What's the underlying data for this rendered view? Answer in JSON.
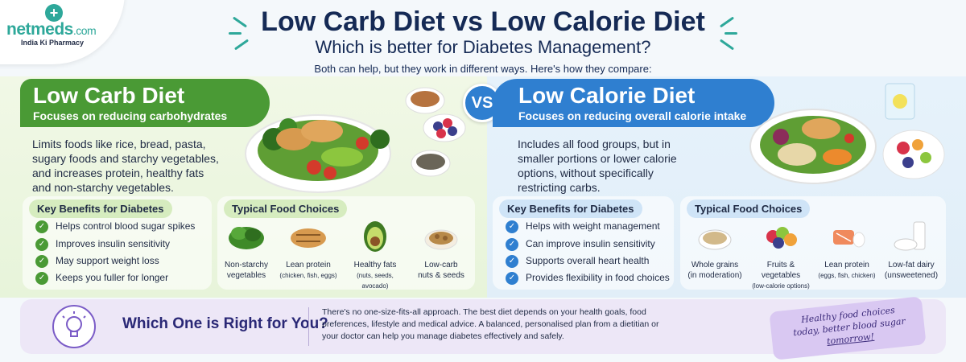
{
  "brand": {
    "name": "netmeds",
    "suffix": ".com",
    "tagline": "India Ki Pharmacy"
  },
  "header": {
    "title": "Low Carb Diet vs Low Calorie Diet",
    "subtitle": "Which is better for Diabetes Management?",
    "intro": "Both can help, but they work in different ways. Here's how they compare:"
  },
  "vs_label": "VS",
  "low_carb": {
    "title": "Low Carb Diet",
    "subtitle": "Focuses on reducing carbohydrates",
    "description": "Limits foods like rice, bread, pasta, sugary foods and starchy vegetables, and increases protein, healthy fats and non-starchy vegetables.",
    "benefits_title": "Key Benefits for Diabetes",
    "benefits": [
      "Helps control blood sugar spikes",
      "Improves insulin sensitivity",
      "May support weight loss",
      "Keeps you fuller for longer"
    ],
    "foods_title": "Typical Food Choices",
    "foods": [
      {
        "name": "Non-starchy",
        "detail": "vegetables",
        "icon": "greens-icon"
      },
      {
        "name": "Lean protein",
        "detail": "(chicken, fish, eggs)",
        "icon": "chicken-icon"
      },
      {
        "name": "Healthy fats",
        "detail": "(nuts, seeds, avocado)",
        "icon": "avocado-icon"
      },
      {
        "name": "Low-carb",
        "detail": "nuts & seeds",
        "icon": "nuts-icon"
      }
    ]
  },
  "low_calorie": {
    "title": "Low Calorie Diet",
    "subtitle": "Focuses on reducing overall calorie intake",
    "description": "Includes all food groups, but in smaller portions or lower calorie options, without specifically restricting carbs.",
    "benefits_title": "Key Benefits for Diabetes",
    "benefits": [
      "Helps with weight management",
      "Can improve insulin sensitivity",
      "Supports overall heart health",
      "Provides flexibility in food choices"
    ],
    "foods_title": "Typical Food Choices",
    "foods": [
      {
        "name": "Whole grains",
        "detail": "(in moderation)",
        "icon": "grains-icon"
      },
      {
        "name": "Fruits & vegetables",
        "detail": "(low-calorie options)",
        "icon": "fruit-veg-icon"
      },
      {
        "name": "Lean protein",
        "detail": "(eggs, fish, chicken)",
        "icon": "salmon-icon"
      },
      {
        "name": "Low-fat dairy",
        "detail": "(unsweetened)",
        "icon": "dairy-icon"
      }
    ]
  },
  "bottom": {
    "question": "Which One is Right for You?",
    "text": "There's no one-size-fits-all approach. The best diet depends on your health goals, food preferences, lifestyle and medical advice. A balanced, personalised plan from a dietitian or your doctor can help you manage diabetes effectively and safely.",
    "note_line1": "Healthy food choices",
    "note_line2": "today, better blood sugar",
    "note_line3": "tomorrow!"
  },
  "colors": {
    "green": "#4a9a35",
    "blue": "#2f7fd0",
    "navy": "#152a55",
    "purple": "#7b5cc7"
  }
}
